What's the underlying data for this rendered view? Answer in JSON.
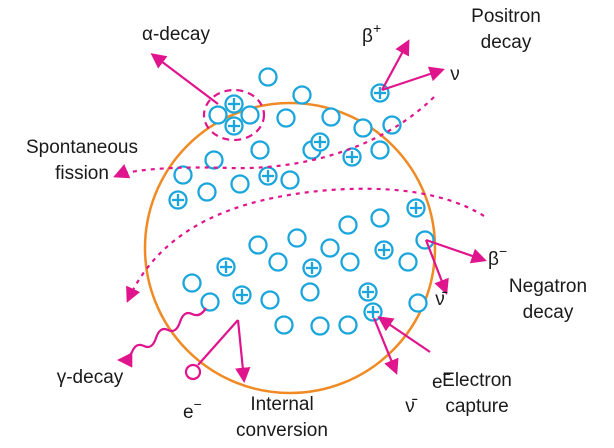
{
  "labels": {
    "alpha_decay": "α-decay",
    "beta_plus": {
      "base": "β",
      "sup": "+"
    },
    "positron_decay": [
      "Positron",
      "decay"
    ],
    "neutrino": "ν",
    "spontaneous_fission": [
      "Spontaneous",
      "fission"
    ],
    "beta_minus": {
      "base": "β",
      "sup": "−"
    },
    "antineutrino_1": "ν̄",
    "negatron_decay": [
      "Negatron",
      "decay"
    ],
    "electron_capture_e": {
      "base": "e",
      "sup": "−"
    },
    "antineutrino_2": "ν̄",
    "electron_capture": [
      "Electron",
      "capture"
    ],
    "gamma_decay": "γ-decay",
    "conversion_e": {
      "base": "e",
      "sup": "−"
    },
    "internal_conversion": [
      "Internal",
      "conversion"
    ]
  }
}
